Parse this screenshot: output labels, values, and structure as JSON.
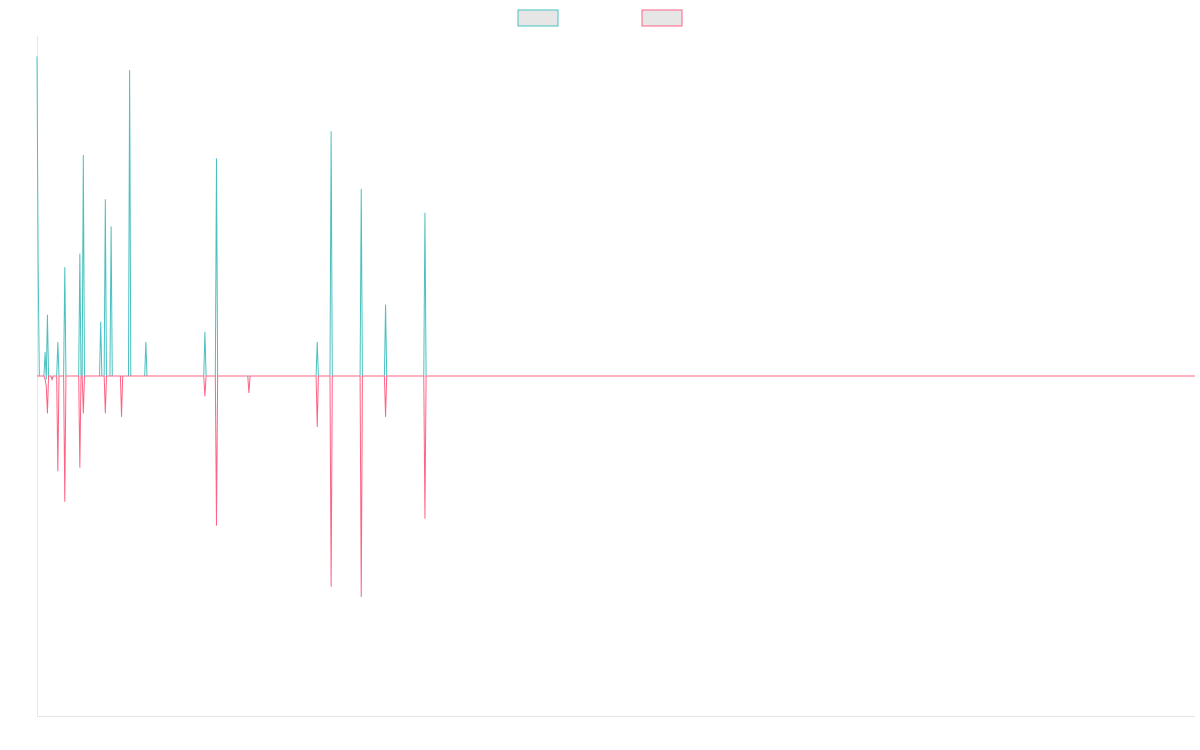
{
  "chart_data": {
    "type": "line",
    "title": "",
    "xlabel": "",
    "ylabel": "",
    "grid": false,
    "legend": {
      "position": "top-center"
    },
    "ylim": [
      -100,
      100
    ],
    "series": [
      {
        "color": "#4bc0c0",
        "legend_fill": "#e6e6e6",
        "values": [
          94,
          32,
          0,
          0,
          0,
          0,
          0,
          7,
          -1,
          18,
          0,
          0,
          0,
          -1,
          0,
          0,
          0,
          0,
          10,
          0,
          0,
          0,
          0,
          0,
          32,
          0,
          0,
          0,
          0,
          0,
          0,
          0,
          0,
          0,
          0,
          0,
          0,
          36,
          0,
          0,
          65,
          0,
          0,
          0,
          0,
          0,
          0,
          0,
          0,
          0,
          0,
          0,
          0,
          0,
          0,
          0,
          0,
          0,
          0,
          0,
          0,
          0,
          0,
          0,
          0,
          0,
          0,
          0,
          0,
          0,
          0,
          0,
          0,
          0,
          0,
          0,
          0,
          0,
          0,
          0,
          0,
          0,
          0,
          0,
          0,
          0,
          0,
          0,
          0,
          0,
          0,
          0,
          0,
          0,
          0,
          0,
          0,
          0,
          0,
          0,
          0,
          0,
          0,
          0,
          0,
          0,
          0,
          0,
          0,
          0,
          0,
          0,
          0,
          0,
          0,
          0,
          0,
          0,
          0,
          0,
          0,
          0,
          0,
          0,
          0,
          0,
          0,
          0,
          0,
          0,
          0,
          0,
          0,
          0,
          0,
          0,
          0,
          0,
          0,
          0,
          0,
          0,
          0,
          0,
          0,
          0,
          0,
          0,
          0,
          0,
          0,
          0,
          0,
          0,
          0,
          0,
          0,
          0,
          0,
          0,
          0,
          0,
          0,
          0,
          0,
          0,
          0,
          0,
          0,
          0,
          0,
          0,
          0,
          0,
          0,
          0,
          0,
          0,
          0,
          0,
          0,
          0,
          0,
          0,
          0,
          0,
          0,
          0,
          0,
          0,
          0,
          0,
          0,
          0,
          0,
          0,
          0,
          0,
          0,
          0,
          0,
          0,
          0,
          0,
          0,
          0,
          0,
          0,
          0,
          0,
          0,
          0,
          0,
          0,
          0,
          0,
          0,
          0,
          0,
          0,
          0,
          0,
          0,
          0,
          0,
          0,
          0,
          0,
          0,
          0,
          0,
          0,
          0,
          0,
          0,
          0,
          0,
          0,
          0,
          0,
          0,
          0,
          0,
          0,
          0,
          0,
          0,
          0,
          0,
          0,
          0,
          0,
          0,
          0,
          0,
          0,
          0,
          0,
          0,
          0,
          0,
          0,
          0,
          0,
          0,
          0,
          0,
          0,
          0,
          0,
          0,
          0,
          0,
          0,
          0,
          0,
          0,
          0,
          0,
          0,
          0,
          0,
          0
        ]
      },
      {
        "color": "#ff6384",
        "legend_fill": "#e6e6e6",
        "values": [
          0,
          0,
          0,
          0,
          0,
          0,
          0,
          -1,
          -3,
          -11,
          0,
          0,
          0,
          -1,
          0,
          0,
          0,
          0,
          -28,
          0,
          0,
          0,
          0,
          0,
          -37,
          0,
          0,
          0,
          0,
          0,
          0,
          0,
          0,
          0,
          0,
          0,
          0,
          -27,
          0,
          0,
          -11,
          0,
          0,
          0,
          0,
          0,
          0,
          0,
          0,
          0,
          0,
          0,
          0,
          0,
          0,
          0,
          0,
          0,
          0,
          0,
          0,
          0,
          0,
          0,
          0,
          0,
          0,
          0,
          0,
          0,
          0,
          0,
          0,
          0,
          0,
          0,
          0,
          0,
          0,
          0,
          0,
          0,
          0,
          0,
          0,
          0,
          0,
          0,
          0,
          0,
          0,
          0,
          0,
          0,
          0,
          0,
          0,
          0,
          0,
          0,
          0,
          0,
          0,
          0,
          0,
          0,
          0,
          0,
          0,
          0,
          0,
          0,
          0,
          0,
          0,
          0,
          0,
          0,
          0,
          0,
          0,
          0,
          0,
          0,
          0,
          0,
          0,
          0,
          0,
          0,
          0,
          0,
          0,
          0,
          0,
          0,
          0,
          0,
          0,
          0,
          0,
          0,
          0,
          0,
          0,
          0,
          0,
          0,
          0,
          0,
          0,
          0,
          0,
          0,
          0,
          0,
          0,
          0,
          0,
          0,
          0,
          0,
          0,
          0,
          0,
          0,
          0,
          0,
          0,
          0,
          0,
          0,
          0,
          0,
          0,
          0,
          0,
          0,
          0,
          0,
          0,
          0,
          0,
          0,
          0,
          0,
          0,
          0,
          0,
          0,
          0,
          0,
          0,
          0,
          0,
          0,
          0,
          0,
          0,
          0,
          0,
          0,
          0,
          0,
          0,
          0,
          0,
          0,
          0,
          0,
          0,
          0,
          0,
          0,
          0,
          0,
          0,
          0,
          0,
          0,
          0,
          0,
          0,
          0,
          0,
          0,
          0,
          0,
          0,
          0,
          0,
          0,
          0,
          0,
          0,
          0,
          0,
          0,
          0,
          0,
          0,
          0,
          0,
          0,
          0,
          0,
          0,
          0,
          0,
          0,
          0,
          0,
          0,
          0,
          0,
          0,
          0,
          0,
          0,
          0,
          0,
          0,
          0,
          0,
          0,
          0,
          0,
          0,
          0,
          0,
          0,
          0,
          0,
          0,
          0,
          0,
          0,
          0,
          0,
          0,
          0
        ]
      }
    ],
    "spikes": [
      {
        "x": 45,
        "a": 0,
        "b": 0
      },
      {
        "x": 55,
        "a": 16,
        "b": 0
      },
      {
        "x": 59,
        "a": 52,
        "b": -11
      },
      {
        "x": 64,
        "a": 44,
        "b": 0
      },
      {
        "x": 73,
        "a": 0,
        "b": -12
      },
      {
        "x": 76,
        "a": 0,
        "b": 0
      },
      {
        "x": 80,
        "a": 90,
        "b": 0
      },
      {
        "x": 94,
        "a": 10,
        "b": 0
      },
      {
        "x": 121,
        "a": 0,
        "b": 0
      },
      {
        "x": 145,
        "a": 13,
        "b": -6
      },
      {
        "x": 155,
        "a": 64,
        "b": -44
      },
      {
        "x": 176,
        "a": 0,
        "b": 0
      },
      {
        "x": 183,
        "a": 0,
        "b": -5
      },
      {
        "x": 222,
        "a": 0,
        "b": 0
      },
      {
        "x": 242,
        "a": 10,
        "b": -15
      },
      {
        "x": 254,
        "a": 72,
        "b": -62
      },
      {
        "x": 272,
        "a": 0,
        "b": 0
      },
      {
        "x": 280,
        "a": 55,
        "b": -65
      },
      {
        "x": 301,
        "a": 21,
        "b": -12
      },
      {
        "x": 335,
        "a": 48,
        "b": -42
      }
    ]
  }
}
